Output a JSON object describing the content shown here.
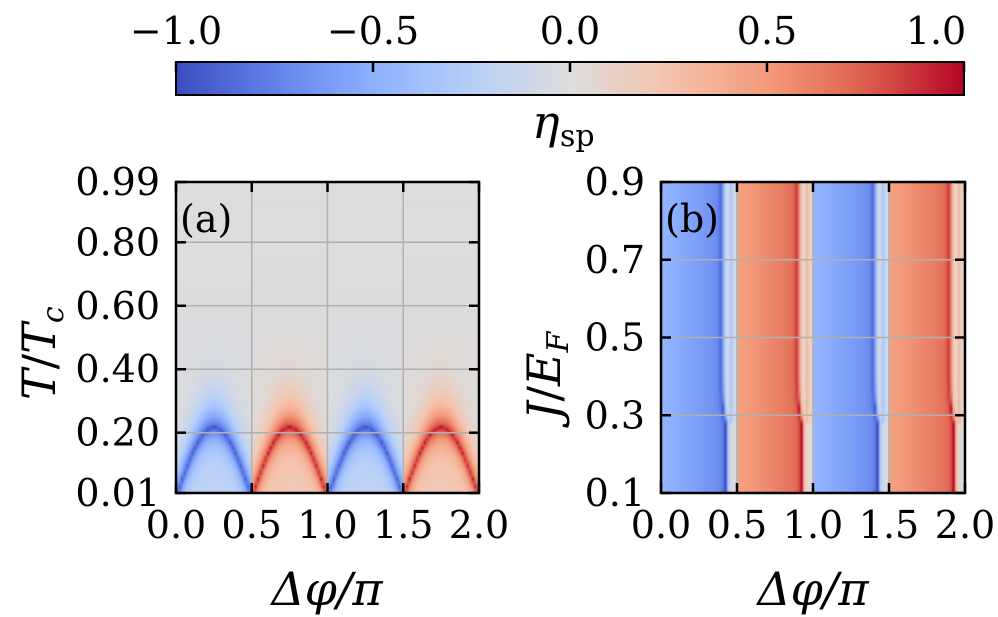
{
  "colorbar": {
    "label": "η",
    "label_sub": "sp",
    "range": [
      -1.0,
      1.0
    ],
    "ticks": [
      -1.0,
      -0.5,
      0.0,
      0.5,
      1.0
    ],
    "tick_labels": [
      "−1.0",
      "−0.5",
      "0.0",
      "0.5",
      "1.0"
    ],
    "colormap": "coolwarm",
    "colors": {
      "neg": "#3b4cc0",
      "mid": "#dddddd",
      "pos": "#b40426"
    }
  },
  "chart_data": [
    {
      "type": "heatmap",
      "panel_tag": "(a)",
      "xlabel": "Δφ/π",
      "ylabel": "T/T_c",
      "ylabel_main": "T",
      "ylabel_sep": "/",
      "ylabel_den": "T",
      "ylabel_sub": "c",
      "xlim": [
        0.0,
        2.0
      ],
      "ylim": [
        0.01,
        0.99
      ],
      "x_ticks": [
        0.0,
        0.5,
        1.0,
        1.5,
        2.0
      ],
      "x_tick_labels": [
        "0.0",
        "0.5",
        "1.0",
        "1.5",
        "2.0"
      ],
      "y_ticks": [
        0.01,
        0.2,
        0.4,
        0.6,
        0.8,
        0.99
      ],
      "y_tick_labels": [
        "0.01",
        "0.20",
        "0.40",
        "0.60",
        "0.80",
        "0.99"
      ],
      "grid": true,
      "value_range": [
        -1.0,
        1.0
      ],
      "description_values": {
        "sign_by_interval": [
          {
            "x": [
              0.0,
              0.5
            ],
            "sign": -1
          },
          {
            "x": [
              0.5,
              1.0
            ],
            "sign": 1
          },
          {
            "x": [
              1.0,
              1.5
            ],
            "sign": -1
          },
          {
            "x": [
              1.5,
              2.0
            ],
            "sign": 1
          }
        ],
        "dome_peak_T": 0.22,
        "max_abs": 1.0
      }
    },
    {
      "type": "heatmap",
      "panel_tag": "(b)",
      "xlabel": "Δφ/π",
      "ylabel": "J/E_F",
      "ylabel_main": "J",
      "ylabel_sep": "/",
      "ylabel_den": "E",
      "ylabel_sub": "F",
      "xlim": [
        0.0,
        2.0
      ],
      "ylim": [
        0.1,
        0.9
      ],
      "x_ticks": [
        0.0,
        0.5,
        1.0,
        1.5,
        2.0
      ],
      "x_tick_labels": [
        "0.0",
        "0.5",
        "1.0",
        "1.5",
        "2.0"
      ],
      "y_ticks": [
        0.1,
        0.3,
        0.5,
        0.7,
        0.9
      ],
      "y_tick_labels": [
        "0.1",
        "0.3",
        "0.5",
        "0.7",
        "0.9"
      ],
      "grid": true,
      "value_range": [
        -1.0,
        1.0
      ],
      "description_values": {
        "sign_by_interval": [
          {
            "x": [
              0.0,
              0.5
            ],
            "sign": -1
          },
          {
            "x": [
              0.5,
              1.0
            ],
            "sign": 1
          },
          {
            "x": [
              1.0,
              1.5
            ],
            "sign": -1
          },
          {
            "x": [
              1.5,
              2.0
            ],
            "sign": 1
          }
        ],
        "kink_J": 0.28,
        "max_abs": 1.0
      }
    }
  ]
}
